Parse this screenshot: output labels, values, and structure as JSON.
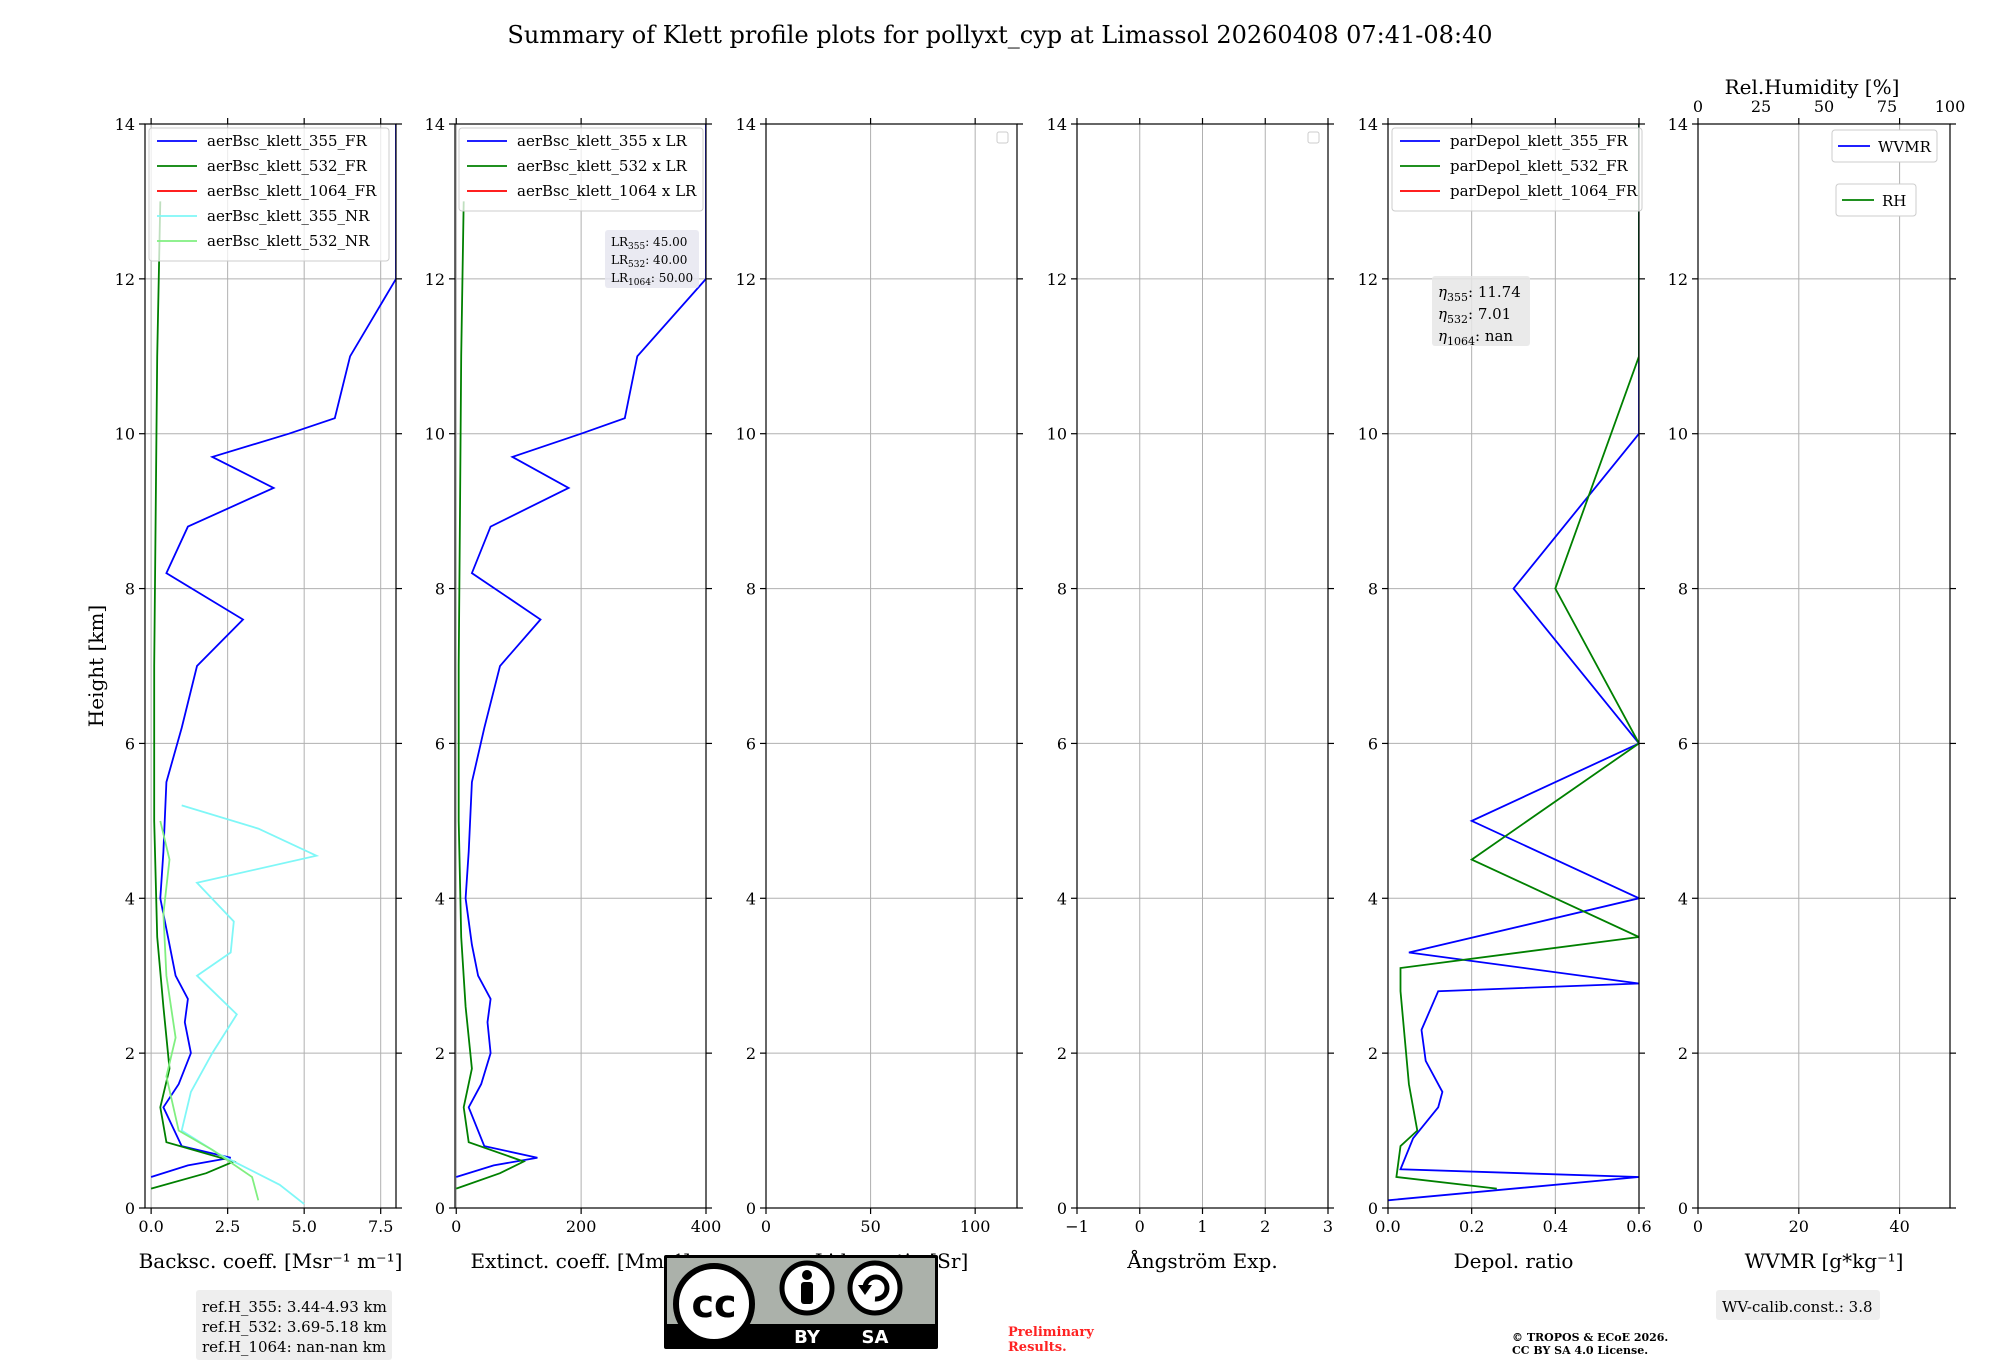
{
  "title": "Summary of Klett profile plots for pollyxt_cyp at Limassol 20260408 07:41-08:40",
  "colors": {
    "c355": "#0000ff",
    "c532": "#008000",
    "c1064": "#ff0000",
    "c355nr": "#7ff7f7",
    "c532nr": "#80ef80",
    "grid": "#b0b0b0",
    "prelim": "#ff2222"
  },
  "chart_data": [
    {
      "type": "line",
      "id": "bsc",
      "xlabel": "Backsc. coeff. [Msr⁻¹ m⁻¹]",
      "ylabel": "Height [km]",
      "xlim": [
        -0.2,
        8
      ],
      "ylim": [
        0,
        14
      ],
      "xticks": [
        0,
        2.5,
        5,
        7.5
      ],
      "xtick_labels": [
        "0.0",
        "2.5",
        "5.0",
        "7.5"
      ],
      "yticks": [
        0,
        2,
        4,
        6,
        8,
        10,
        12,
        14
      ],
      "legend": [
        "aerBsc_klett_355_FR",
        "aerBsc_klett_532_FR",
        "aerBsc_klett_1064_FR",
        "aerBsc_klett_355_NR",
        "aerBsc_klett_532_NR"
      ],
      "series": [
        {
          "name": "aerBsc_klett_355_FR",
          "color": "#0000ff",
          "x": [
            0,
            1.2,
            2.6,
            1.0,
            0.4,
            0.9,
            1.3,
            1.1,
            1.2,
            0.8,
            0.6,
            0.3,
            0.4,
            0.5,
            1.0,
            1.5,
            3.0,
            0.5,
            1.2,
            4.0,
            2.0,
            4.5,
            6.0,
            6.5,
            8.0,
            8.0,
            8.0
          ],
          "y": [
            0.4,
            0.55,
            0.65,
            0.8,
            1.3,
            1.6,
            2.0,
            2.4,
            2.7,
            3.0,
            3.4,
            4.0,
            4.6,
            5.5,
            6.2,
            7.0,
            7.6,
            8.2,
            8.8,
            9.3,
            9.7,
            10.0,
            10.2,
            11.0,
            12.0,
            13.0,
            14.0
          ]
        },
        {
          "name": "aerBsc_klett_532_FR",
          "color": "#008000",
          "x": [
            0,
            1.8,
            2.7,
            0.5,
            0.3,
            0.6,
            0.4,
            0.2,
            0.1,
            0.1,
            0.15,
            0.2,
            0.3
          ],
          "y": [
            0.25,
            0.45,
            0.6,
            0.85,
            1.3,
            1.8,
            2.6,
            3.5,
            5.0,
            7.0,
            9.0,
            11.0,
            13.0
          ]
        },
        {
          "name": "aerBsc_klett_355_NR",
          "color": "#7ff7f7",
          "x": [
            5.0,
            4.2,
            2.2,
            1.0,
            1.3,
            2.0,
            2.8,
            1.5,
            2.6,
            2.7,
            1.5,
            5.4,
            3.5,
            1.0
          ],
          "y": [
            0.05,
            0.3,
            0.7,
            1.0,
            1.5,
            2.0,
            2.5,
            3.0,
            3.3,
            3.7,
            4.2,
            4.55,
            4.9,
            5.2
          ]
        },
        {
          "name": "aerBsc_klett_532_NR",
          "color": "#80ef80",
          "x": [
            3.5,
            3.3,
            2.0,
            0.9,
            0.5,
            0.8,
            0.5,
            0.4,
            0.6,
            0.3
          ],
          "y": [
            0.1,
            0.4,
            0.75,
            1.0,
            1.7,
            2.2,
            3.0,
            3.8,
            4.5,
            5.0
          ]
        }
      ],
      "info_box": [
        "ref.H_355: 3.44-4.93 km",
        "ref.H_532: 3.69-5.18 km",
        "ref.H_1064: nan-nan km"
      ]
    },
    {
      "type": "line",
      "id": "ext",
      "xlabel": "Extinct. coeff. [Mm⁻¹]",
      "xlim": [
        -2,
        400
      ],
      "ylim": [
        0,
        14
      ],
      "xticks": [
        0,
        200,
        400
      ],
      "xtick_labels": [
        "0",
        "200",
        "400"
      ],
      "yticks": [
        0,
        2,
        4,
        6,
        8,
        10,
        12,
        14
      ],
      "legend": [
        "aerBsc_klett_355 x LR",
        "aerBsc_klett_532 x LR",
        "aerBsc_klett_1064 x LR"
      ],
      "series": [
        {
          "name": "aerBsc_klett_355 x LR",
          "color": "#0000ff",
          "x": [
            0,
            60,
            130,
            45,
            20,
            40,
            55,
            50,
            55,
            35,
            25,
            15,
            20,
            25,
            45,
            70,
            135,
            25,
            55,
            180,
            90,
            200,
            270,
            290,
            400,
            400,
            400
          ],
          "y": [
            0.4,
            0.55,
            0.65,
            0.8,
            1.3,
            1.6,
            2.0,
            2.4,
            2.7,
            3.0,
            3.4,
            4.0,
            4.6,
            5.5,
            6.2,
            7.0,
            7.6,
            8.2,
            8.8,
            9.3,
            9.7,
            10.0,
            10.2,
            11.0,
            12.0,
            13.0,
            14.0
          ]
        },
        {
          "name": "aerBsc_klett_532 x LR",
          "color": "#008000",
          "x": [
            0,
            70,
            108,
            20,
            12,
            25,
            15,
            8,
            4,
            4,
            6,
            8,
            12
          ],
          "y": [
            0.25,
            0.45,
            0.6,
            0.85,
            1.3,
            1.8,
            2.6,
            3.5,
            5.0,
            7.0,
            9.0,
            11.0,
            13.0
          ]
        }
      ],
      "lr_box": [
        "LR355: 45.00",
        "LR532: 40.00",
        "LR1064: 50.00"
      ],
      "lr_parts": [
        {
          "sub": "355",
          "val": ": 45.00"
        },
        {
          "sub": "532",
          "val": ": 40.00"
        },
        {
          "sub": "1064",
          "val": ": 50.00"
        }
      ]
    },
    {
      "type": "line",
      "id": "lr",
      "xlabel": "Lidar ratio [Sr]",
      "xlim": [
        0,
        120
      ],
      "ylim": [
        0,
        14
      ],
      "xticks": [
        0,
        50,
        100
      ],
      "xtick_labels": [
        "0",
        "50",
        "100"
      ],
      "yticks": [
        0,
        2,
        4,
        6,
        8,
        10,
        12,
        14
      ],
      "series": []
    },
    {
      "type": "line",
      "id": "ang",
      "xlabel": "Ångström Exp.",
      "xlim": [
        -1,
        3
      ],
      "ylim": [
        0,
        14
      ],
      "xticks": [
        -1,
        0,
        1,
        2,
        3
      ],
      "xtick_labels": [
        "−1",
        "0",
        "1",
        "2",
        "3"
      ],
      "yticks": [
        0,
        2,
        4,
        6,
        8,
        10,
        12,
        14
      ],
      "series": []
    },
    {
      "type": "line",
      "id": "depol",
      "xlabel": "Depol. ratio",
      "xlim": [
        0,
        0.6
      ],
      "ylim": [
        0,
        14
      ],
      "xticks": [
        0,
        0.2,
        0.4,
        0.6
      ],
      "xtick_labels": [
        "0.0",
        "0.2",
        "0.4",
        "0.6"
      ],
      "yticks": [
        0,
        2,
        4,
        6,
        8,
        10,
        12,
        14
      ],
      "legend": [
        "parDepol_klett_355_FR",
        "parDepol_klett_532_FR",
        "parDepol_klett_1064_FR"
      ],
      "series": [
        {
          "name": "parDepol_klett_355_FR",
          "color": "#0000ff",
          "x": [
            0.0,
            0.6,
            0.03,
            0.06,
            0.12,
            0.13,
            0.09,
            0.08,
            0.12,
            0.6,
            0.05,
            0.6,
            0.2,
            0.6,
            0.3,
            0.6,
            0.6
          ],
          "y": [
            0.1,
            0.4,
            0.5,
            0.9,
            1.3,
            1.5,
            1.9,
            2.3,
            2.8,
            2.9,
            3.3,
            4.0,
            5.0,
            6.0,
            8.0,
            10.0,
            14.0
          ]
        },
        {
          "name": "parDepol_klett_532_FR",
          "color": "#008000",
          "x": [
            0.26,
            0.02,
            0.03,
            0.07,
            0.05,
            0.04,
            0.03,
            0.03,
            0.6,
            0.2,
            0.6,
            0.4,
            0.6,
            0.6
          ],
          "y": [
            0.25,
            0.4,
            0.8,
            1.0,
            1.6,
            2.2,
            2.8,
            3.1,
            3.5,
            4.5,
            6.0,
            8.0,
            11.0,
            14.0
          ]
        }
      ],
      "eta_box": [
        "η355: 11.74",
        "η532: 7.01",
        "η1064: nan"
      ],
      "eta_parts": [
        {
          "sub": "355",
          "val": ": 11.74"
        },
        {
          "sub": "532",
          "val": ": 7.01"
        },
        {
          "sub": "1064",
          "val": ": nan"
        }
      ]
    },
    {
      "type": "line",
      "id": "wvmr",
      "xlabel": "WVMR [g*kg⁻¹]",
      "top_label": "Rel.Humidity [%]",
      "xlim": [
        0,
        50
      ],
      "ylim": [
        0,
        14
      ],
      "xticks": [
        0,
        20,
        40
      ],
      "xtick_labels": [
        "0",
        "20",
        "40"
      ],
      "top_xlim": [
        0,
        100
      ],
      "top_xticks": [
        0,
        25,
        50,
        75,
        100
      ],
      "top_xtick_labels": [
        "0",
        "25",
        "50",
        "75",
        "100"
      ],
      "yticks": [
        0,
        2,
        4,
        6,
        8,
        10,
        12,
        14
      ],
      "legend": [
        "WVMR",
        "RH"
      ],
      "series": [],
      "info_box": [
        "WV-calib.const.: 3.8"
      ]
    }
  ],
  "footer": {
    "cc_by": "BY",
    "cc_sa": "SA",
    "cc_logo": "cc",
    "preliminary": [
      "Preliminary",
      "Results."
    ],
    "copyright": [
      "© TROPOS & ECoE 2026.",
      "CC BY SA 4.0 License."
    ]
  }
}
